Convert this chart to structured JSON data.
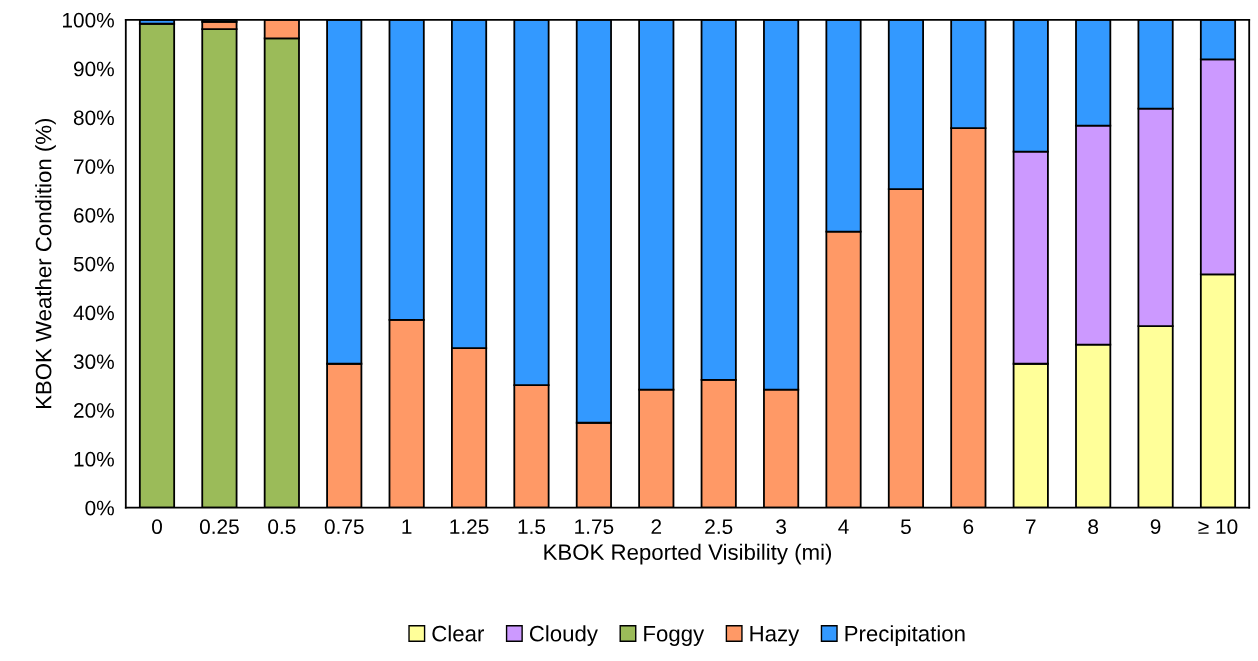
{
  "chart_data": {
    "type": "bar",
    "stacked": true,
    "xlabel": "KBOK Reported Visibility (mi)",
    "ylabel": "KBOK Weather Condition (%)",
    "categories": [
      "0",
      "0.25",
      "0.5",
      "0.75",
      "1",
      "1.25",
      "1.5",
      "1.75",
      "2",
      "2.5",
      "3",
      "4",
      "5",
      "6",
      "7",
      "8",
      "9",
      "≥ 10"
    ],
    "series": [
      {
        "name": "Clear",
        "color": "#ffff99",
        "values": [
          null,
          null,
          null,
          null,
          null,
          null,
          null,
          null,
          null,
          null,
          null,
          null,
          null,
          null,
          29.5,
          33.4,
          37.2,
          47.8
        ]
      },
      {
        "name": "Cloudy",
        "color": "#cc99ff",
        "values": [
          null,
          null,
          null,
          null,
          null,
          null,
          null,
          null,
          null,
          null,
          null,
          null,
          null,
          null,
          43.5,
          44.9,
          44.6,
          44.1
        ]
      },
      {
        "name": "Foggy",
        "color": "#9bbb59",
        "values": [
          99.2,
          98.1,
          96.2,
          null,
          null,
          null,
          null,
          null,
          null,
          null,
          null,
          null,
          null,
          null,
          null,
          null,
          null,
          null
        ]
      },
      {
        "name": "Hazy",
        "color": "#ff9966",
        "values": [
          null,
          1.5,
          3.8,
          29.5,
          38.5,
          32.7,
          25.1,
          17.4,
          24.2,
          26.2,
          24.2,
          56.6,
          65.3,
          77.8,
          null,
          null,
          null,
          null
        ]
      },
      {
        "name": "Precipitation",
        "color": "#3399ff",
        "values": [
          0.8,
          0.4,
          null,
          70.5,
          61.5,
          67.3,
          74.9,
          82.6,
          75.8,
          73.8,
          75.8,
          43.4,
          34.7,
          22.2,
          27.0,
          21.7,
          18.2,
          8.1
        ]
      }
    ],
    "ylim": [
      0,
      100
    ],
    "yticks": [
      {
        "value": 0,
        "label": "0%"
      },
      {
        "value": 10,
        "label": "10%"
      },
      {
        "value": 20,
        "label": "20%"
      },
      {
        "value": 30,
        "label": "30%"
      },
      {
        "value": 40,
        "label": "40%"
      },
      {
        "value": 50,
        "label": "50%"
      },
      {
        "value": 60,
        "label": "60%"
      },
      {
        "value": 70,
        "label": "70%"
      },
      {
        "value": 80,
        "label": "80%"
      },
      {
        "value": 90,
        "label": "90%"
      },
      {
        "value": 100,
        "label": "100%"
      }
    ],
    "grid": false,
    "legend": "bottom"
  }
}
